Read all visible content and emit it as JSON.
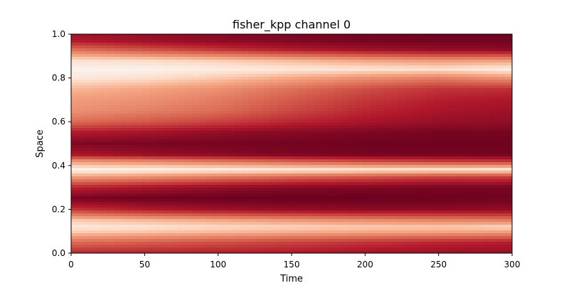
{
  "chart_data": {
    "type": "heatmap",
    "title": "fisher_kpp channel 0",
    "xlabel": "Time",
    "ylabel": "Space",
    "xlim": [
      0,
      300
    ],
    "ylim": [
      0.0,
      1.0
    ],
    "x_ticks": [
      0,
      50,
      100,
      150,
      200,
      250,
      300
    ],
    "y_ticks": [
      0.0,
      0.2,
      0.4,
      0.6,
      0.8,
      1.0
    ],
    "x_tick_labels": [
      "0",
      "50",
      "100",
      "150",
      "200",
      "250",
      "300"
    ],
    "y_tick_labels": [
      "0.0",
      "0.2",
      "0.4",
      "0.6",
      "0.8",
      "1.0"
    ],
    "colormap": "RdGy-like (dark red to white)",
    "grid": false,
    "colorbar": false,
    "space_samples": [
      0.0,
      0.05,
      0.1,
      0.12,
      0.15,
      0.2,
      0.25,
      0.3,
      0.35,
      0.38,
      0.42,
      0.45,
      0.5,
      0.55,
      0.6,
      0.65,
      0.7,
      0.75,
      0.8,
      0.84,
      0.88,
      0.93,
      0.97,
      1.0
    ],
    "time_samples": [
      0,
      50,
      100,
      150,
      200,
      250,
      300
    ],
    "intensity": [
      [
        0.3,
        0.28,
        0.26,
        0.24,
        0.2,
        0.17,
        0.15
      ],
      [
        0.55,
        0.5,
        0.45,
        0.4,
        0.35,
        0.3,
        0.27
      ],
      [
        0.88,
        0.86,
        0.83,
        0.8,
        0.78,
        0.77,
        0.76
      ],
      [
        0.95,
        0.93,
        0.9,
        0.88,
        0.86,
        0.85,
        0.9
      ],
      [
        0.85,
        0.8,
        0.75,
        0.7,
        0.66,
        0.63,
        0.6
      ],
      [
        0.35,
        0.25,
        0.18,
        0.14,
        0.12,
        0.12,
        0.13
      ],
      [
        0.05,
        0.02,
        0.01,
        0.01,
        0.01,
        0.02,
        0.03
      ],
      [
        0.3,
        0.22,
        0.15,
        0.1,
        0.08,
        0.06,
        0.06
      ],
      [
        0.75,
        0.7,
        0.62,
        0.55,
        0.48,
        0.42,
        0.4
      ],
      [
        1.0,
        0.99,
        0.98,
        0.97,
        0.96,
        0.96,
        0.98
      ],
      [
        0.7,
        0.65,
        0.58,
        0.5,
        0.43,
        0.38,
        0.35
      ],
      [
        0.22,
        0.16,
        0.11,
        0.07,
        0.05,
        0.04,
        0.04
      ],
      [
        0.08,
        0.06,
        0.05,
        0.04,
        0.03,
        0.03,
        0.03
      ],
      [
        0.25,
        0.2,
        0.14,
        0.1,
        0.07,
        0.05,
        0.05
      ],
      [
        0.55,
        0.48,
        0.4,
        0.3,
        0.22,
        0.16,
        0.14
      ],
      [
        0.68,
        0.62,
        0.55,
        0.42,
        0.3,
        0.22,
        0.18
      ],
      [
        0.72,
        0.68,
        0.6,
        0.48,
        0.36,
        0.27,
        0.23
      ],
      [
        0.8,
        0.75,
        0.68,
        0.56,
        0.44,
        0.35,
        0.33
      ],
      [
        0.95,
        0.92,
        0.85,
        0.76,
        0.68,
        0.62,
        0.7
      ],
      [
        0.99,
        0.99,
        0.97,
        0.95,
        0.94,
        0.93,
        0.98
      ],
      [
        0.92,
        0.9,
        0.86,
        0.8,
        0.74,
        0.7,
        0.72
      ],
      [
        0.55,
        0.45,
        0.35,
        0.25,
        0.18,
        0.14,
        0.12
      ],
      [
        0.25,
        0.18,
        0.12,
        0.08,
        0.05,
        0.04,
        0.04
      ],
      [
        0.2,
        0.15,
        0.1,
        0.07,
        0.05,
        0.03,
        0.03
      ]
    ]
  }
}
